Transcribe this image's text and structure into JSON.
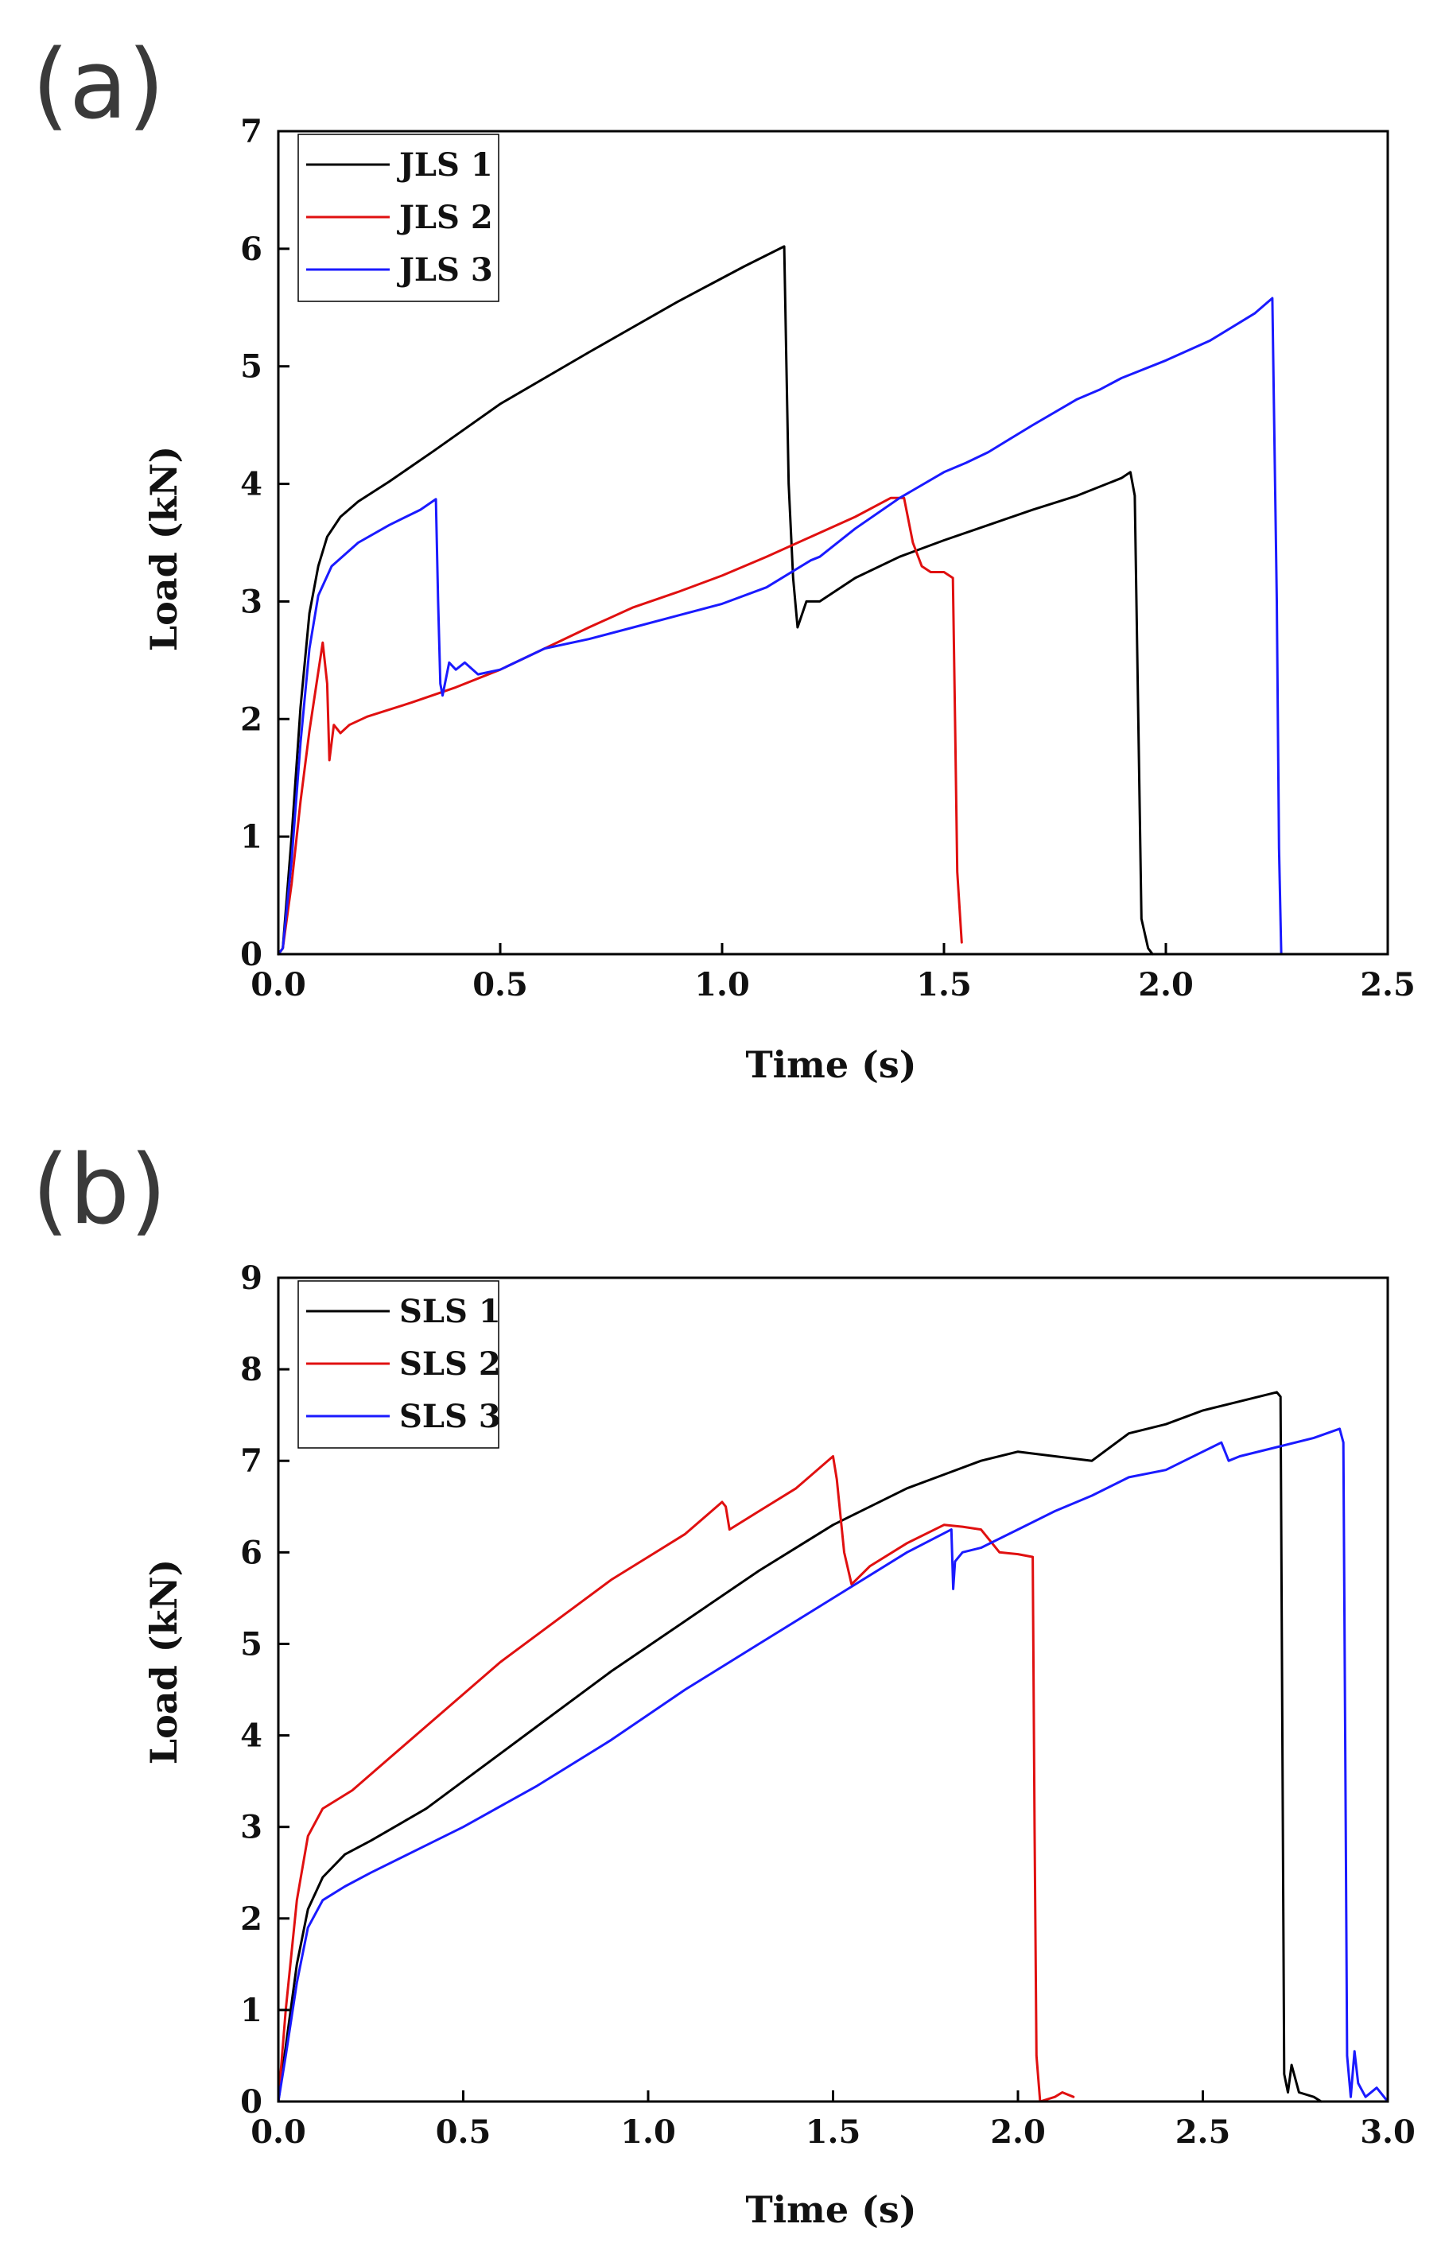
{
  "chart_data": [
    {
      "panel_label": "(a)",
      "type": "line",
      "xlabel": "Time (s)",
      "ylabel": "Load (kN)",
      "xlim": [
        0,
        2.5
      ],
      "ylim": [
        0,
        7
      ],
      "xticks": [
        0,
        0.5,
        1.0,
        1.5,
        2.0,
        2.5
      ],
      "xtick_labels": [
        "0.0",
        "0.5",
        "1.0",
        "1.5",
        "2.0",
        "2.5"
      ],
      "yticks": [
        0,
        1,
        2,
        3,
        4,
        5,
        6,
        7
      ],
      "ytick_labels": [
        "0",
        "1",
        "2",
        "3",
        "4",
        "5",
        "6",
        "7"
      ],
      "grid": false,
      "legend_position": "top-left",
      "series": [
        {
          "name": "JLS 1",
          "color": "#000000",
          "points": [
            [
              0,
              0
            ],
            [
              0.01,
              0.05
            ],
            [
              0.03,
              1.0
            ],
            [
              0.05,
              2.1
            ],
            [
              0.07,
              2.9
            ],
            [
              0.09,
              3.3
            ],
            [
              0.11,
              3.55
            ],
            [
              0.14,
              3.72
            ],
            [
              0.18,
              3.85
            ],
            [
              0.25,
              4.02
            ],
            [
              0.35,
              4.28
            ],
            [
              0.5,
              4.68
            ],
            [
              0.7,
              5.12
            ],
            [
              0.9,
              5.55
            ],
            [
              1.05,
              5.85
            ],
            [
              1.14,
              6.02
            ],
            [
              1.145,
              5.0
            ],
            [
              1.15,
              4.0
            ],
            [
              1.16,
              3.2
            ],
            [
              1.17,
              2.78
            ],
            [
              1.19,
              3.0
            ],
            [
              1.22,
              3.0
            ],
            [
              1.3,
              3.2
            ],
            [
              1.4,
              3.38
            ],
            [
              1.5,
              3.52
            ],
            [
              1.6,
              3.65
            ],
            [
              1.7,
              3.78
            ],
            [
              1.8,
              3.9
            ],
            [
              1.9,
              4.05
            ],
            [
              1.92,
              4.1
            ],
            [
              1.93,
              3.9
            ],
            [
              1.94,
              1.5
            ],
            [
              1.945,
              0.3
            ],
            [
              1.96,
              0.05
            ],
            [
              1.97,
              0
            ]
          ]
        },
        {
          "name": "JLS 2",
          "color": "#e01010",
          "points": [
            [
              0,
              0
            ],
            [
              0.01,
              0.05
            ],
            [
              0.03,
              0.6
            ],
            [
              0.05,
              1.3
            ],
            [
              0.07,
              1.9
            ],
            [
              0.09,
              2.4
            ],
            [
              0.1,
              2.65
            ],
            [
              0.11,
              2.3
            ],
            [
              0.115,
              1.65
            ],
            [
              0.125,
              1.95
            ],
            [
              0.14,
              1.88
            ],
            [
              0.16,
              1.95
            ],
            [
              0.2,
              2.02
            ],
            [
              0.3,
              2.14
            ],
            [
              0.4,
              2.27
            ],
            [
              0.5,
              2.42
            ],
            [
              0.6,
              2.6
            ],
            [
              0.7,
              2.78
            ],
            [
              0.8,
              2.95
            ],
            [
              0.9,
              3.08
            ],
            [
              1.0,
              3.22
            ],
            [
              1.1,
              3.38
            ],
            [
              1.2,
              3.55
            ],
            [
              1.3,
              3.72
            ],
            [
              1.38,
              3.88
            ],
            [
              1.41,
              3.88
            ],
            [
              1.43,
              3.5
            ],
            [
              1.45,
              3.3
            ],
            [
              1.47,
              3.25
            ],
            [
              1.5,
              3.25
            ],
            [
              1.52,
              3.2
            ],
            [
              1.525,
              2.0
            ],
            [
              1.53,
              0.7
            ],
            [
              1.54,
              0.1
            ]
          ]
        },
        {
          "name": "JLS 3",
          "color": "#1a1aff",
          "points": [
            [
              0,
              0
            ],
            [
              0.01,
              0.05
            ],
            [
              0.03,
              0.8
            ],
            [
              0.05,
              1.8
            ],
            [
              0.07,
              2.6
            ],
            [
              0.09,
              3.05
            ],
            [
              0.12,
              3.3
            ],
            [
              0.18,
              3.5
            ],
            [
              0.25,
              3.65
            ],
            [
              0.32,
              3.78
            ],
            [
              0.355,
              3.87
            ],
            [
              0.36,
              3.0
            ],
            [
              0.365,
              2.3
            ],
            [
              0.37,
              2.2
            ],
            [
              0.385,
              2.48
            ],
            [
              0.4,
              2.42
            ],
            [
              0.42,
              2.48
            ],
            [
              0.45,
              2.38
            ],
            [
              0.5,
              2.42
            ],
            [
              0.6,
              2.6
            ],
            [
              0.7,
              2.68
            ],
            [
              0.8,
              2.78
            ],
            [
              0.9,
              2.88
            ],
            [
              1.0,
              2.98
            ],
            [
              1.1,
              3.12
            ],
            [
              1.2,
              3.35
            ],
            [
              1.22,
              3.38
            ],
            [
              1.3,
              3.62
            ],
            [
              1.4,
              3.88
            ],
            [
              1.5,
              4.1
            ],
            [
              1.55,
              4.18
            ],
            [
              1.6,
              4.27
            ],
            [
              1.7,
              4.5
            ],
            [
              1.8,
              4.72
            ],
            [
              1.85,
              4.8
            ],
            [
              1.9,
              4.9
            ],
            [
              2.0,
              5.05
            ],
            [
              2.1,
              5.22
            ],
            [
              2.2,
              5.45
            ],
            [
              2.24,
              5.58
            ],
            [
              2.25,
              3.0
            ],
            [
              2.255,
              0.9
            ],
            [
              2.26,
              0
            ]
          ]
        }
      ]
    },
    {
      "panel_label": "(b)",
      "type": "line",
      "xlabel": "Time (s)",
      "ylabel": "Load (kN)",
      "xlim": [
        0,
        3.0
      ],
      "ylim": [
        0,
        9
      ],
      "xticks": [
        0,
        0.5,
        1.0,
        1.5,
        2.0,
        2.5,
        3.0
      ],
      "xtick_labels": [
        "0.0",
        "0.5",
        "1.0",
        "1.5",
        "2.0",
        "2.5",
        "3.0"
      ],
      "yticks": [
        0,
        1,
        2,
        3,
        4,
        5,
        6,
        7,
        8,
        9
      ],
      "ytick_labels": [
        "0",
        "1",
        "2",
        "3",
        "4",
        "5",
        "6",
        "7",
        "8",
        "9"
      ],
      "grid": false,
      "legend_position": "top-left",
      "series": [
        {
          "name": "SLS 1",
          "color": "#000000",
          "points": [
            [
              0,
              0
            ],
            [
              0.02,
              0.6
            ],
            [
              0.05,
              1.5
            ],
            [
              0.08,
              2.1
            ],
            [
              0.12,
              2.45
            ],
            [
              0.18,
              2.7
            ],
            [
              0.25,
              2.85
            ],
            [
              0.4,
              3.2
            ],
            [
              0.5,
              3.5
            ],
            [
              0.7,
              4.1
            ],
            [
              0.9,
              4.7
            ],
            [
              1.1,
              5.25
            ],
            [
              1.3,
              5.8
            ],
            [
              1.5,
              6.3
            ],
            [
              1.6,
              6.5
            ],
            [
              1.7,
              6.7
            ],
            [
              1.8,
              6.85
            ],
            [
              1.9,
              7.0
            ],
            [
              2.0,
              7.1
            ],
            [
              2.1,
              7.05
            ],
            [
              2.2,
              7.0
            ],
            [
              2.3,
              7.3
            ],
            [
              2.35,
              7.35
            ],
            [
              2.4,
              7.4
            ],
            [
              2.5,
              7.55
            ],
            [
              2.6,
              7.65
            ],
            [
              2.7,
              7.75
            ],
            [
              2.71,
              7.7
            ],
            [
              2.715,
              4.0
            ],
            [
              2.72,
              0.3
            ],
            [
              2.73,
              0.1
            ],
            [
              2.74,
              0.4
            ],
            [
              2.76,
              0.1
            ],
            [
              2.8,
              0.05
            ],
            [
              2.82,
              0
            ]
          ]
        },
        {
          "name": "SLS 2",
          "color": "#e01010",
          "points": [
            [
              0,
              0
            ],
            [
              0.02,
              1.0
            ],
            [
              0.05,
              2.2
            ],
            [
              0.08,
              2.9
            ],
            [
              0.12,
              3.2
            ],
            [
              0.2,
              3.4
            ],
            [
              0.3,
              3.75
            ],
            [
              0.4,
              4.1
            ],
            [
              0.5,
              4.45
            ],
            [
              0.6,
              4.8
            ],
            [
              0.7,
              5.1
            ],
            [
              0.8,
              5.4
            ],
            [
              0.9,
              5.7
            ],
            [
              1.0,
              5.95
            ],
            [
              1.1,
              6.2
            ],
            [
              1.2,
              6.55
            ],
            [
              1.21,
              6.5
            ],
            [
              1.22,
              6.25
            ],
            [
              1.3,
              6.45
            ],
            [
              1.4,
              6.7
            ],
            [
              1.5,
              7.05
            ],
            [
              1.51,
              6.8
            ],
            [
              1.53,
              6.0
            ],
            [
              1.55,
              5.65
            ],
            [
              1.6,
              5.85
            ],
            [
              1.7,
              6.1
            ],
            [
              1.8,
              6.3
            ],
            [
              1.85,
              6.28
            ],
            [
              1.9,
              6.25
            ],
            [
              1.95,
              6.0
            ],
            [
              2.0,
              5.98
            ],
            [
              2.04,
              5.95
            ],
            [
              2.045,
              3.0
            ],
            [
              2.05,
              0.5
            ],
            [
              2.06,
              0
            ],
            [
              2.1,
              0.05
            ],
            [
              2.12,
              0.1
            ],
            [
              2.15,
              0.05
            ]
          ]
        },
        {
          "name": "SLS 3",
          "color": "#1a1aff",
          "points": [
            [
              0,
              0
            ],
            [
              0.02,
              0.5
            ],
            [
              0.05,
              1.3
            ],
            [
              0.08,
              1.9
            ],
            [
              0.12,
              2.2
            ],
            [
              0.18,
              2.35
            ],
            [
              0.25,
              2.5
            ],
            [
              0.4,
              2.8
            ],
            [
              0.5,
              3.0
            ],
            [
              0.7,
              3.45
            ],
            [
              0.9,
              3.95
            ],
            [
              1.1,
              4.5
            ],
            [
              1.3,
              5.0
            ],
            [
              1.5,
              5.5
            ],
            [
              1.7,
              6.0
            ],
            [
              1.82,
              6.25
            ],
            [
              1.825,
              5.6
            ],
            [
              1.83,
              5.9
            ],
            [
              1.85,
              6.0
            ],
            [
              1.9,
              6.05
            ],
            [
              2.0,
              6.25
            ],
            [
              2.1,
              6.45
            ],
            [
              2.2,
              6.62
            ],
            [
              2.3,
              6.82
            ],
            [
              2.4,
              6.9
            ],
            [
              2.5,
              7.1
            ],
            [
              2.55,
              7.2
            ],
            [
              2.57,
              7.0
            ],
            [
              2.6,
              7.05
            ],
            [
              2.7,
              7.15
            ],
            [
              2.8,
              7.25
            ],
            [
              2.87,
              7.35
            ],
            [
              2.88,
              7.2
            ],
            [
              2.885,
              4.0
            ],
            [
              2.89,
              0.5
            ],
            [
              2.9,
              0.05
            ],
            [
              2.91,
              0.55
            ],
            [
              2.92,
              0.2
            ],
            [
              2.94,
              0.05
            ],
            [
              2.97,
              0.15
            ],
            [
              3.0,
              0
            ]
          ]
        }
      ]
    }
  ]
}
